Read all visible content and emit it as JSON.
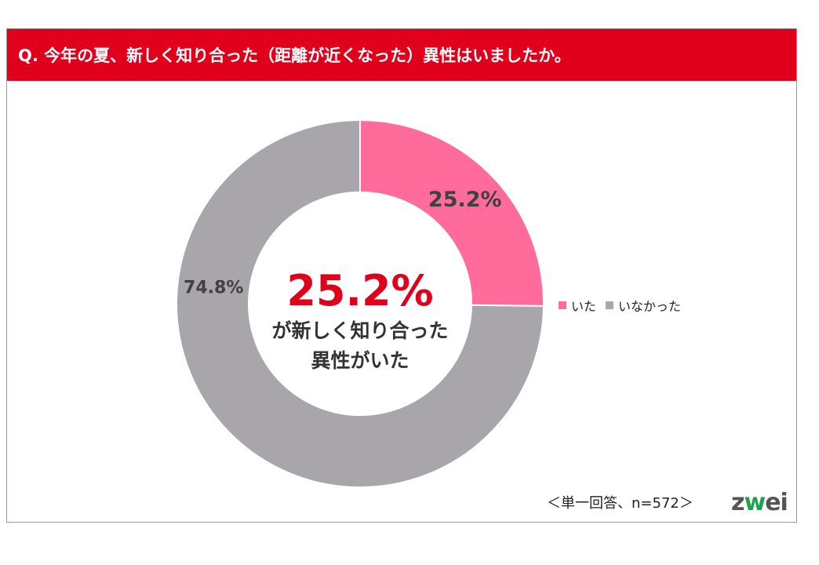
{
  "header": {
    "title": "Q. 今年の夏、新しく知り合った（距離が近くなった）異性はいましたか。"
  },
  "colors": {
    "header_bg": "#e0001b",
    "ita": "#ff6b9b",
    "inakatta": "#a8a6aa",
    "center_value": "#e0001b"
  },
  "chart_data": {
    "type": "pie",
    "style": "donut",
    "categories": [
      "いた",
      "いなかった"
    ],
    "values": [
      25.2,
      74.8
    ],
    "value_labels": [
      "25.2%",
      "74.8%"
    ],
    "center_text": {
      "value": "25.2%",
      "line1": "が新しく知り合った",
      "line2": "異性がいた"
    },
    "legend_position": "right"
  },
  "legend": {
    "items": [
      {
        "label": "いた"
      },
      {
        "label": "いなかった"
      }
    ]
  },
  "footnote": "＜単一回答、n=572＞",
  "logo": {
    "z": "z",
    "w": "w",
    "ei": "ei"
  }
}
